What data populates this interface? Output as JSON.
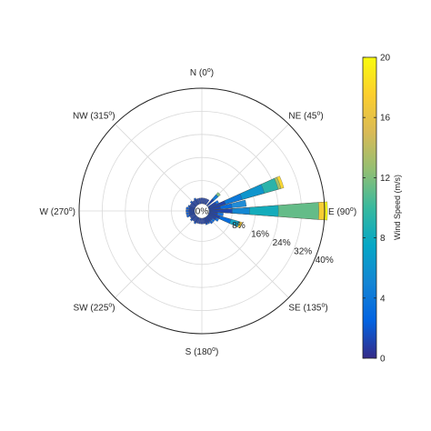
{
  "chart_data": {
    "type": "wind-rose",
    "title": "",
    "direction_labels": [
      {
        "angle": 0,
        "text": "N (0",
        "sup": "o",
        "tail": ")"
      },
      {
        "angle": 45,
        "text": "NE (45",
        "sup": "o",
        "tail": ")"
      },
      {
        "angle": 90,
        "text": "E (90",
        "sup": "o",
        "tail": ")"
      },
      {
        "angle": 135,
        "text": "SE (135",
        "sup": "o",
        "tail": ")"
      },
      {
        "angle": 180,
        "text": "S (180",
        "sup": "o",
        "tail": ")"
      },
      {
        "angle": 225,
        "text": "SW (225",
        "sup": "o",
        "tail": ")"
      },
      {
        "angle": 270,
        "text": "W (270",
        "sup": "o",
        "tail": ")"
      },
      {
        "angle": 315,
        "text": "NW (315",
        "sup": "o",
        "tail": ")"
      }
    ],
    "radial_ticks": [
      "0%",
      "8%",
      "16%",
      "24%",
      "32%",
      "40%"
    ],
    "radial_max": 40,
    "radial_tick_angle": 112,
    "grid": true,
    "sectors": [
      {
        "direction": 90,
        "bins": [
          {
            "frequency": 8,
            "speed": 1
          },
          {
            "frequency": 14,
            "speed": 5
          },
          {
            "frequency": 24,
            "speed": 8
          },
          {
            "frequency": 38,
            "speed": 11
          },
          {
            "frequency": 40,
            "speed": 17
          },
          {
            "frequency": 41,
            "speed": 20
          }
        ]
      },
      {
        "direction": 70,
        "bins": [
          {
            "frequency": 6,
            "speed": 1
          },
          {
            "frequency": 12,
            "speed": 4
          },
          {
            "frequency": 20,
            "speed": 6
          },
          {
            "frequency": 25,
            "speed": 9
          },
          {
            "frequency": 26,
            "speed": 13
          },
          {
            "frequency": 27,
            "speed": 18
          }
        ]
      },
      {
        "direction": 80,
        "bins": [
          {
            "frequency": 4,
            "speed": 1
          },
          {
            "frequency": 8,
            "speed": 3
          },
          {
            "frequency": 13,
            "speed": 5
          }
        ]
      },
      {
        "direction": 110,
        "bins": [
          {
            "frequency": 4,
            "speed": 1
          },
          {
            "frequency": 8,
            "speed": 3
          },
          {
            "frequency": 11,
            "speed": 7
          },
          {
            "frequency": 12,
            "speed": 17
          }
        ]
      },
      {
        "direction": 45,
        "bins": [
          {
            "frequency": 3,
            "speed": 1
          },
          {
            "frequency": 5,
            "speed": 4
          },
          {
            "frequency": 6,
            "speed": 12
          }
        ]
      },
      {
        "direction": 100,
        "bins": [
          {
            "frequency": 3,
            "speed": 1
          },
          {
            "frequency": 5,
            "speed": 3
          }
        ]
      },
      {
        "direction": 120,
        "bins": [
          {
            "frequency": 3,
            "speed": 1
          },
          {
            "frequency": 4,
            "speed": 3
          }
        ]
      },
      {
        "direction": 60,
        "bins": [
          {
            "frequency": 3,
            "speed": 1
          },
          {
            "frequency": 4,
            "speed": 3
          }
        ]
      },
      {
        "direction": 130,
        "bins": [
          {
            "frequency": 2,
            "speed": 1
          },
          {
            "frequency": 3,
            "speed": 3
          }
        ]
      },
      {
        "direction": 140,
        "bins": [
          {
            "frequency": 2,
            "speed": 1
          },
          {
            "frequency": 3,
            "speed": 2
          }
        ]
      },
      {
        "direction": 150,
        "bins": [
          {
            "frequency": 2,
            "speed": 1
          },
          {
            "frequency": 2.5,
            "speed": 2
          }
        ]
      },
      {
        "direction": 160,
        "bins": [
          {
            "frequency": 2,
            "speed": 1
          },
          {
            "frequency": 2.5,
            "speed": 2
          }
        ]
      },
      {
        "direction": 170,
        "bins": [
          {
            "frequency": 2,
            "speed": 1
          }
        ]
      },
      {
        "direction": 180,
        "bins": [
          {
            "frequency": 2,
            "speed": 1
          }
        ]
      },
      {
        "direction": 190,
        "bins": [
          {
            "frequency": 2,
            "speed": 1
          }
        ]
      },
      {
        "direction": 200,
        "bins": [
          {
            "frequency": 2,
            "speed": 1
          }
        ]
      },
      {
        "direction": 210,
        "bins": [
          {
            "frequency": 2,
            "speed": 1
          },
          {
            "frequency": 2.5,
            "speed": 2
          }
        ]
      },
      {
        "direction": 220,
        "bins": [
          {
            "frequency": 2,
            "speed": 1
          }
        ]
      },
      {
        "direction": 230,
        "bins": [
          {
            "frequency": 2,
            "speed": 1
          },
          {
            "frequency": 2.5,
            "speed": 2
          }
        ]
      },
      {
        "direction": 240,
        "bins": [
          {
            "frequency": 2,
            "speed": 1
          }
        ]
      },
      {
        "direction": 250,
        "bins": [
          {
            "frequency": 2,
            "speed": 1
          },
          {
            "frequency": 3,
            "speed": 2
          }
        ]
      },
      {
        "direction": 260,
        "bins": [
          {
            "frequency": 2,
            "speed": 1
          },
          {
            "frequency": 3,
            "speed": 2
          }
        ]
      },
      {
        "direction": 270,
        "bins": [
          {
            "frequency": 2,
            "speed": 1
          },
          {
            "frequency": 3,
            "speed": 2
          }
        ]
      },
      {
        "direction": 280,
        "bins": [
          {
            "frequency": 2,
            "speed": 1
          },
          {
            "frequency": 3,
            "speed": 2
          }
        ]
      },
      {
        "direction": 290,
        "bins": [
          {
            "frequency": 2,
            "speed": 1
          },
          {
            "frequency": 2.5,
            "speed": 2
          }
        ]
      },
      {
        "direction": 300,
        "bins": [
          {
            "frequency": 2,
            "speed": 1
          }
        ]
      },
      {
        "direction": 310,
        "bins": [
          {
            "frequency": 2,
            "speed": 1
          },
          {
            "frequency": 2.5,
            "speed": 2
          }
        ]
      },
      {
        "direction": 320,
        "bins": [
          {
            "frequency": 2,
            "speed": 1
          }
        ]
      },
      {
        "direction": 330,
        "bins": [
          {
            "frequency": 2,
            "speed": 1
          },
          {
            "frequency": 2.5,
            "speed": 2
          }
        ]
      },
      {
        "direction": 340,
        "bins": [
          {
            "frequency": 2,
            "speed": 1
          }
        ]
      },
      {
        "direction": 350,
        "bins": [
          {
            "frequency": 2,
            "speed": 1
          }
        ]
      },
      {
        "direction": 0,
        "bins": [
          {
            "frequency": 2,
            "speed": 1
          }
        ]
      },
      {
        "direction": 10,
        "bins": [
          {
            "frequency": 2,
            "speed": 1
          }
        ]
      },
      {
        "direction": 20,
        "bins": [
          {
            "frequency": 2,
            "speed": 1
          }
        ]
      },
      {
        "direction": 30,
        "bins": [
          {
            "frequency": 2,
            "speed": 1
          }
        ]
      }
    ],
    "colorbar": {
      "label": "Wind Speed (m/s)",
      "min": 0,
      "max": 20,
      "ticks": [
        "0",
        "4",
        "8",
        "12",
        "16",
        "20"
      ],
      "colormap": "parula",
      "colormap_stops": [
        "#352a87",
        "#0363e1",
        "#1485d4",
        "#06a7c6",
        "#38b99e",
        "#92bf73",
        "#d9ba56",
        "#fcce2e",
        "#f9fb0e"
      ]
    }
  }
}
